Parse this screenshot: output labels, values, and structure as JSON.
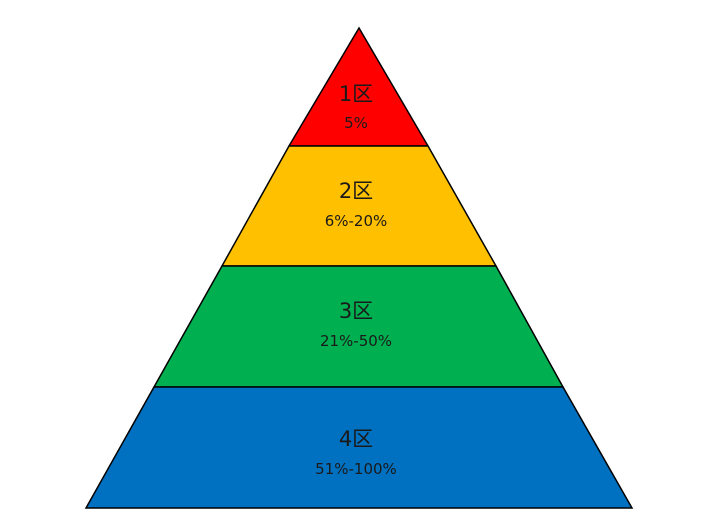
{
  "tiers": [
    {
      "label": "1区",
      "range": "5%",
      "color": "#ff0000"
    },
    {
      "label": "2区",
      "range": "6%-20%",
      "color": "#ffc000"
    },
    {
      "label": "3区",
      "range": "21%-50%",
      "color": "#00b050"
    },
    {
      "label": "4区",
      "range": "51%-100%",
      "color": "#0070c0"
    }
  ]
}
